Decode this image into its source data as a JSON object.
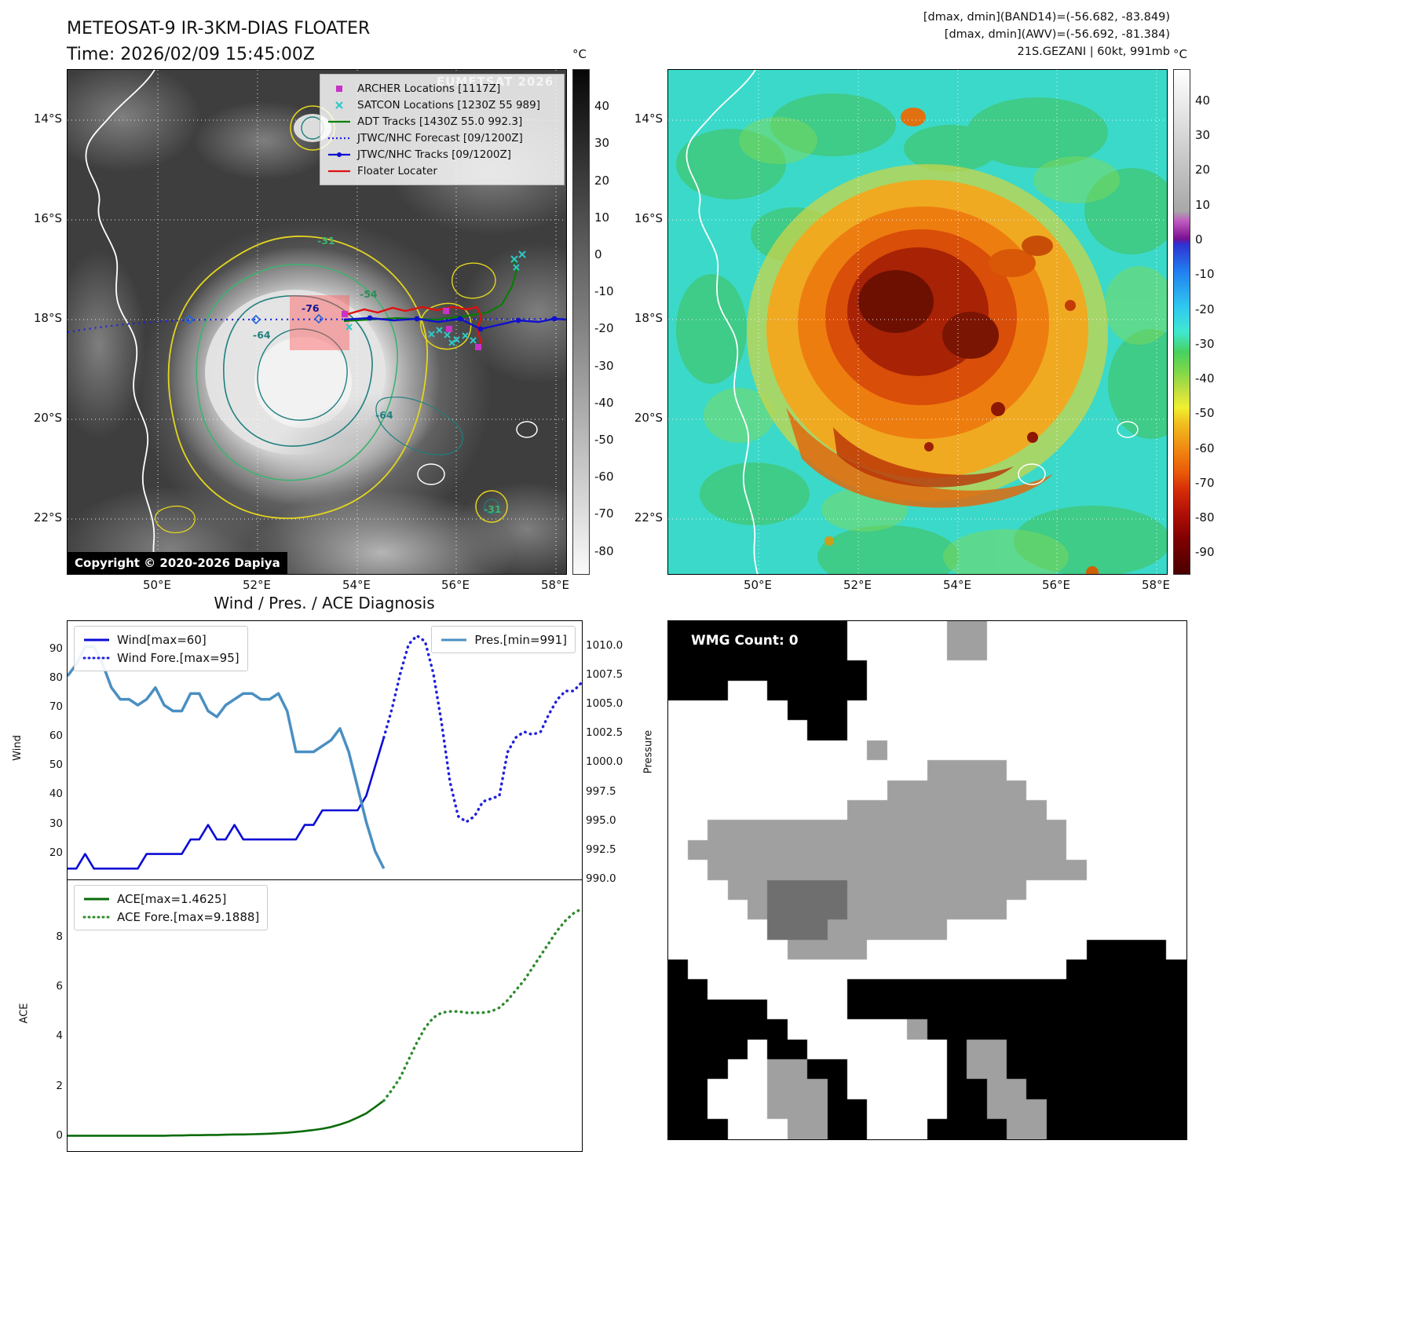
{
  "panel1": {
    "title_line1": "METEOSAT-9 IR-3KM-DIAS FLOATER",
    "title_line2": "Time: 2026/02/09 15:45:00Z",
    "watermark": "EUMETSAT 2026",
    "copyright": "Copyright © 2020-2026 Dapiya",
    "colorbar": {
      "unit": "°C",
      "ticks": [
        40,
        30,
        20,
        10,
        0,
        -10,
        -20,
        -30,
        -40,
        -50,
        -60,
        -70,
        -80
      ]
    },
    "legend": [
      {
        "label": "ARCHER Locations [1117Z]",
        "marker": "square",
        "color": "#c832c8"
      },
      {
        "label": "SATCON Locations [1230Z 55 989]",
        "marker": "x",
        "color": "#2ec8c8"
      },
      {
        "label": "ADT Tracks [1430Z 55.0 992.3]",
        "marker": "line",
        "color": "#008000"
      },
      {
        "label": "JTWC/NHC Forecast [09/1200Z]",
        "marker": "dotted",
        "color": "#2121dd"
      },
      {
        "label": "JTWC/NHC Tracks [09/1200Z]",
        "marker": "line-dot",
        "color": "#1010cf"
      },
      {
        "label": "Floater Locater",
        "marker": "line",
        "color": "#e01010"
      }
    ],
    "contour_labels": [
      "-31",
      "-54",
      "-76",
      "-64",
      "-64",
      "-31"
    ]
  },
  "panel2": {
    "header_line1": "[dmax, dmin](BAND14)=(-56.682, -83.849)",
    "header_line2": "[dmax, dmin](AWV)=(-56.692, -81.384)",
    "header_line3": "21S.GEZANI | 60kt, 991mb",
    "colorbar": {
      "unit": "°C",
      "ticks": [
        40,
        30,
        20,
        10,
        0,
        -10,
        -20,
        -30,
        -40,
        -50,
        -60,
        -70,
        -80,
        -90
      ]
    }
  },
  "geo": {
    "lat_ticks": [
      "14°S",
      "16°S",
      "18°S",
      "20°S",
      "22°S"
    ],
    "lon_ticks": [
      "50°E",
      "52°E",
      "54°E",
      "56°E",
      "58°E"
    ]
  },
  "charts": {
    "title": "Wind / Pres. / ACE Diagnosis"
  },
  "chart_data": [
    {
      "type": "line",
      "title": "Wind / Pres. / ACE Diagnosis",
      "ylabel_left": "Wind",
      "ylabel_right": "Pressure",
      "yticks_left": [
        20,
        30,
        40,
        50,
        60,
        70,
        80,
        90
      ],
      "yticks_right": [
        990.0,
        992.5,
        995.0,
        997.5,
        1000.0,
        1002.5,
        1005.0,
        1007.5,
        1010.0
      ],
      "ylim_left": [
        11,
        100
      ],
      "ylim_right": [
        990,
        1012.2
      ],
      "legend_position": "top-left and top-right",
      "series": [
        {
          "name": "Wind[max=60]",
          "axis": "left",
          "style": "solid",
          "color": "#0b0bd6",
          "x_range": [
            0,
            0.615
          ],
          "values": [
            15,
            15,
            20,
            15,
            15,
            15,
            15,
            15,
            15,
            20,
            20,
            20,
            20,
            20,
            25,
            25,
            30,
            25,
            25,
            30,
            25,
            25,
            25,
            25,
            25,
            25,
            25,
            30,
            30,
            35,
            35,
            35,
            35,
            35,
            40,
            50,
            60
          ]
        },
        {
          "name": "Wind Fore.[max=95]",
          "axis": "left",
          "style": "dotted",
          "color": "#2121dd",
          "x_range": [
            0.615,
            1.0
          ],
          "values": [
            60,
            70,
            82,
            92,
            95,
            93,
            82,
            65,
            45,
            33,
            31,
            33,
            38,
            39,
            40,
            55,
            60,
            62,
            61,
            62,
            68,
            73,
            76,
            76,
            79
          ]
        },
        {
          "name": "Pres.[min=991]",
          "axis": "right",
          "style": "solid",
          "color": "#4a8fc2",
          "x_range": [
            0,
            0.615
          ],
          "values": [
            1007.5,
            1008.5,
            1010,
            1010,
            1008.5,
            1006.5,
            1005.5,
            1005.5,
            1005,
            1005.5,
            1006.5,
            1005,
            1004.5,
            1004.5,
            1006,
            1006,
            1004.5,
            1004,
            1005,
            1005.5,
            1006,
            1006,
            1005.5,
            1005.5,
            1006,
            1004.5,
            1001,
            1001,
            1001,
            1001.5,
            1002,
            1003,
            1001,
            998,
            995,
            992.5,
            991
          ]
        }
      ]
    },
    {
      "type": "line",
      "ylabel_left": "ACE",
      "yticks_left": [
        0,
        2,
        4,
        6,
        8
      ],
      "ylim_left": [
        -0.57,
        10.33
      ],
      "legend_position": "top-left",
      "series": [
        {
          "name": "ACE[max=1.4625]",
          "axis": "left",
          "style": "solid",
          "color": "#0a6b0a",
          "x_range": [
            0,
            0.615
          ],
          "values": [
            0.05,
            0.05,
            0.05,
            0.05,
            0.05,
            0.05,
            0.05,
            0.05,
            0.05,
            0.05,
            0.05,
            0.05,
            0.06,
            0.06,
            0.07,
            0.07,
            0.08,
            0.08,
            0.09,
            0.1,
            0.1,
            0.11,
            0.12,
            0.13,
            0.15,
            0.17,
            0.2,
            0.24,
            0.28,
            0.33,
            0.4,
            0.5,
            0.62,
            0.78,
            0.95,
            1.2,
            1.4625
          ]
        },
        {
          "name": "ACE Fore.[max=9.1888]",
          "axis": "left",
          "style": "dotted",
          "color": "#2e8b2e",
          "x_range": [
            0.615,
            1.0
          ],
          "values": [
            1.4625,
            1.9,
            2.4,
            3.1,
            3.8,
            4.4,
            4.8,
            5.0,
            5.05,
            5.05,
            5.0,
            5.0,
            5.0,
            5.05,
            5.2,
            5.5,
            5.9,
            6.3,
            6.8,
            7.3,
            7.8,
            8.3,
            8.7,
            9.0,
            9.1888
          ]
        }
      ]
    }
  ],
  "panel4": {
    "label": "WMG Count: 0",
    "colors": {
      "W": "#ffffff",
      "G": "#a0a0a0",
      "D": "#6f6f6f",
      "B": "#000000"
    },
    "grid_rows": [
      "BBBBBBBBBWWWWWGGWWWWWWWWWW",
      "BBBBBBBBBWWWWWGGWWWWWWWWWW",
      "BBBBBBBBBBWWWWWWWWWWWWWWWW",
      "BBBWWBBBBBWWWWWWWWWWWWWWWW",
      "WWWWWWBBBWWWWWWWWWWWWWWWWW",
      "WWWWWWWBBWWWWWWWWWWWWWWWWW",
      "WWWWWWWWWWGWWWWWWWWWWWWWWW",
      "WWWWWWWWWWWWWGGGGWWWWWWWWW",
      "WWWWWWWWWWWGGGGGGGWWWWWWWW",
      "WWWWWWWWWGGGGGGGGGGWWWWWWW",
      "WWGGGGGGGGGGGGGGGGGGWWWWWW",
      "WGGGGGGGGGGGGGGGGGGGWWWWWW",
      "WWGGGGGGGGGGGGGGGGGGGWWWWW",
      "WWWGGDDDDGGGGGGGGGWWWWWWWW",
      "WWWWGDDDDGGGGGGGGWWWWWWWWW",
      "WWWWWDDDGGGGGGWWWWWWWWWWWW",
      "WWWWWWGGGGWWWWWWWWWWWBBBBW",
      "BWWWWWWWWWWWWWWWWWWWBBBBBB",
      "BBWWWWWWWBBBBBBBBBBBBBBBBB",
      "BBBBBWWWWBBBBBBBBBBBBBBBBB",
      "BBBBBBWWWWWWGBBBBBBBBBBBBB",
      "BBBBWBBWWWWWWWBGGBBBBBBBBB",
      "BBBWWGGBBWWWWWBGGBBBBBBBBB",
      "BBWWWGGGBWWWWWBBGGBBBBBBBB",
      "BBWWWGGGBBWWWWBBGGGBBBBBBB",
      "BBBWWWGGBBWWWBBBBGGBBBBBBB"
    ]
  }
}
